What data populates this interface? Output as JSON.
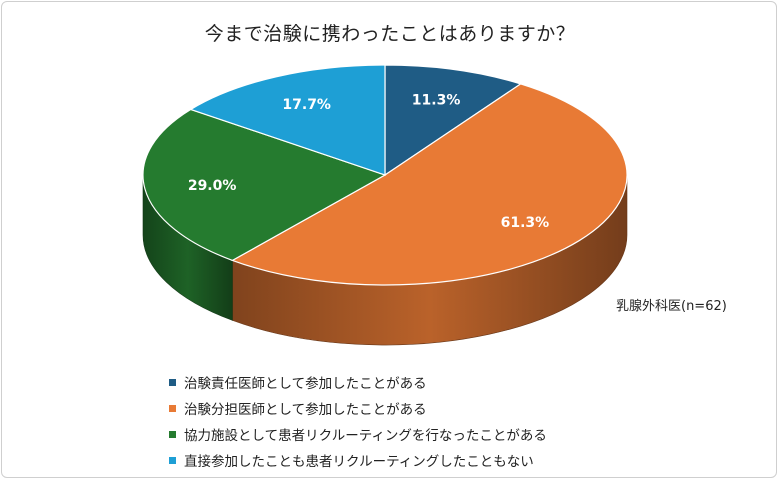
{
  "chart_data": {
    "type": "pie",
    "title": "今まで治験に携わったことはありますか？",
    "note": "乳腺外科医(n=62)",
    "slices": [
      {
        "label": "治験責任医師として参加したことがある",
        "value": 11.3,
        "value_label": "11.3%",
        "color": "#1f5c85"
      },
      {
        "label": "治験分担医師として参加したことがある",
        "value": 61.3,
        "value_label": "61.3%",
        "color": "#e87a35"
      },
      {
        "label": "協力施設として患者リクルーティングを行なったことがある",
        "value": 29.0,
        "value_label": "29.0%",
        "color": "#257b2f"
      },
      {
        "label": "直接参加したことも患者リクルーティングしたこともない",
        "value": 17.7,
        "value_label": "17.7%",
        "color": "#1e9fd5"
      }
    ],
    "legend_position": "bottom"
  }
}
